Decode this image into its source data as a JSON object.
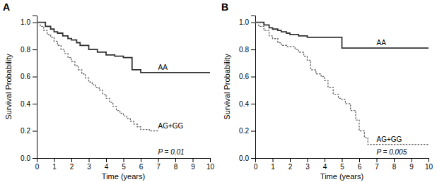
{
  "chart_data": [
    {
      "type": "step",
      "title": "A",
      "x_label": "Time (years)",
      "y_label": "Survival Probability",
      "annotation": "P = 0.01",
      "series": [
        {
          "name": "AA",
          "color": "#333333",
          "line_style": "solid",
          "x": [
            0,
            0.3,
            0.5,
            0.8,
            1.0,
            1.2,
            1.5,
            1.8,
            2.0,
            2.3,
            2.5,
            3.0,
            3.5,
            4.0,
            4.5,
            5.0,
            5.5,
            6.0,
            6.5,
            7.0,
            10.0
          ],
          "values": [
            1.0,
            1.0,
            0.97,
            0.95,
            0.93,
            0.92,
            0.9,
            0.88,
            0.87,
            0.85,
            0.83,
            0.8,
            0.78,
            0.76,
            0.75,
            0.74,
            0.65,
            0.63,
            0.63,
            0.63,
            0.63
          ]
        },
        {
          "name": "AG+GG",
          "color": "#666666",
          "line_style": "dotted",
          "x": [
            0,
            0.2,
            0.4,
            0.6,
            0.8,
            1.0,
            1.2,
            1.4,
            1.6,
            1.8,
            2.0,
            2.2,
            2.4,
            2.6,
            2.8,
            3.0,
            3.2,
            3.4,
            3.6,
            3.8,
            4.0,
            4.2,
            4.4,
            4.6,
            4.8,
            5.0,
            5.2,
            5.4,
            5.6,
            5.8,
            6.0,
            6.5,
            7.0
          ],
          "values": [
            1.0,
            0.97,
            0.94,
            0.91,
            0.89,
            0.86,
            0.83,
            0.8,
            0.77,
            0.74,
            0.71,
            0.68,
            0.65,
            0.62,
            0.59,
            0.56,
            0.54,
            0.52,
            0.5,
            0.47,
            0.44,
            0.41,
            0.38,
            0.35,
            0.33,
            0.31,
            0.29,
            0.27,
            0.25,
            0.23,
            0.21,
            0.2,
            0.2
          ]
        }
      ],
      "xlim": [
        0,
        10
      ],
      "ylim": [
        0,
        1.05
      ],
      "xticks": [
        0,
        1,
        2,
        3,
        4,
        5,
        6,
        7,
        8,
        9,
        10
      ],
      "yticks": [
        {
          "value": 0.0,
          "label": "0.0"
        },
        0.2,
        0.4,
        0.6,
        0.8,
        {
          "value": 1.0,
          "label": "1.0"
        }
      ]
    },
    {
      "type": "step",
      "title": "B",
      "x_label": "Time (years)",
      "y_label": "Survival Probability",
      "annotation": "P = 0.005",
      "series": [
        {
          "name": "AA",
          "color": "#333333",
          "line_style": "solid",
          "x": [
            0,
            0.3,
            0.5,
            0.8,
            1.0,
            1.3,
            1.5,
            1.8,
            2.0,
            2.5,
            3.0,
            3.5,
            4.0,
            4.5,
            5.0,
            5.5,
            6.0,
            6.5,
            7.0,
            10.0
          ],
          "values": [
            1.0,
            1.0,
            0.98,
            0.96,
            0.95,
            0.94,
            0.93,
            0.92,
            0.91,
            0.9,
            0.89,
            0.89,
            0.89,
            0.89,
            0.81,
            0.81,
            0.81,
            0.81,
            0.81,
            0.81
          ]
        },
        {
          "name": "AG+GG",
          "color": "#666666",
          "line_style": "dotted",
          "x": [
            0,
            0.2,
            0.5,
            0.8,
            1.0,
            1.3,
            1.5,
            1.8,
            2.0,
            2.3,
            2.5,
            2.8,
            3.0,
            3.2,
            3.5,
            3.8,
            4.0,
            4.2,
            4.5,
            4.8,
            5.0,
            5.2,
            5.5,
            5.8,
            6.0,
            6.3,
            6.5,
            7.0,
            10.0
          ],
          "values": [
            1.0,
            0.97,
            0.94,
            0.9,
            0.88,
            0.85,
            0.83,
            0.82,
            0.82,
            0.8,
            0.78,
            0.75,
            0.72,
            0.65,
            0.62,
            0.6,
            0.57,
            0.52,
            0.47,
            0.44,
            0.43,
            0.4,
            0.35,
            0.28,
            0.2,
            0.15,
            0.1,
            0.1,
            0.1
          ]
        }
      ],
      "xlim": [
        0,
        10
      ],
      "ylim": [
        0,
        1.05
      ],
      "xticks": [
        0,
        1,
        2,
        3,
        4,
        5,
        6,
        7,
        8,
        9,
        10
      ],
      "yticks": [
        {
          "value": 0.0,
          "label": "0.0"
        },
        0.2,
        0.4,
        0.6,
        0.8,
        {
          "value": 1.0,
          "label": "1.0"
        }
      ]
    }
  ]
}
